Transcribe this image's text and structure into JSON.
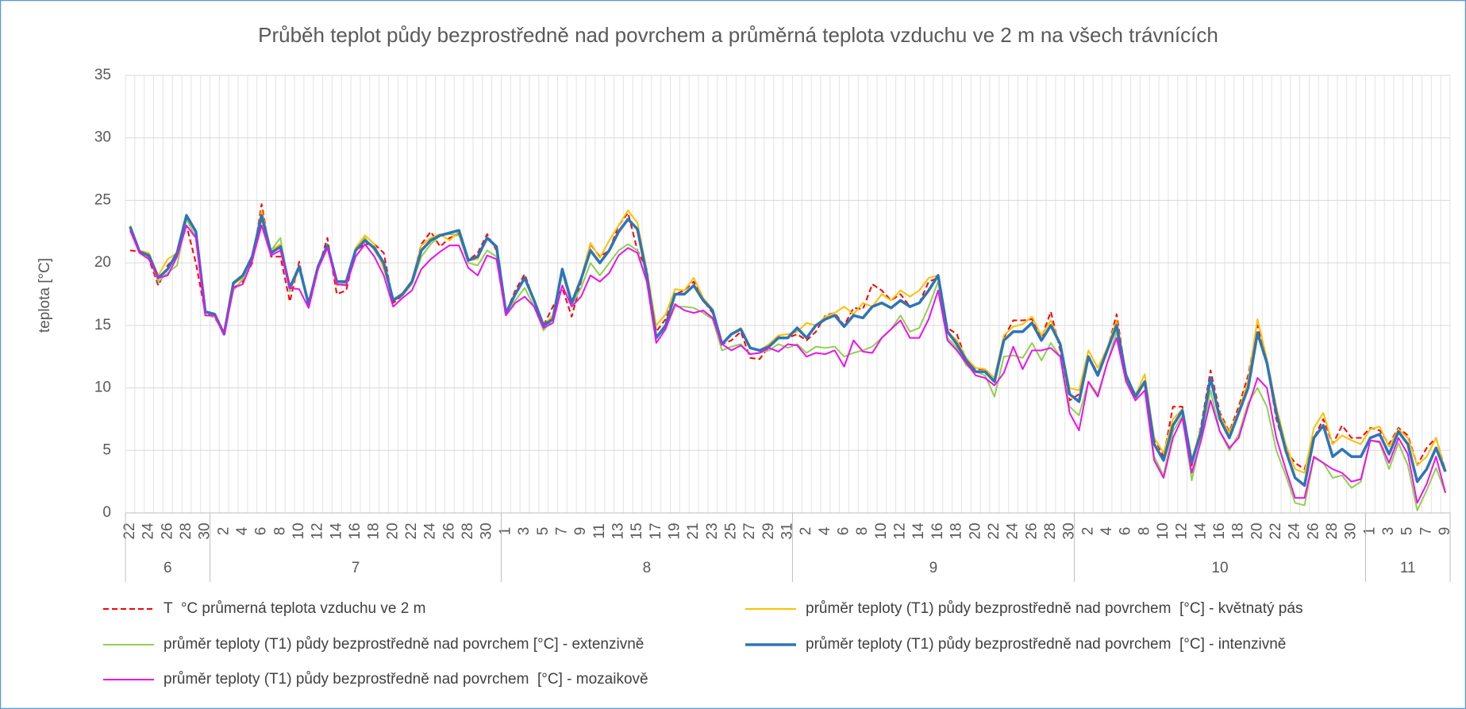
{
  "chart_data": {
    "type": "line",
    "title": "Průběh teplot půdy bezprostředně nad povrchem a průměrná teplota vzduchu ve 2 m na všech trávnících",
    "y_label": "teplota [°C]",
    "ylim": [
      0,
      35
    ],
    "yticks": [
      0,
      5,
      10,
      15,
      20,
      25,
      30,
      35
    ],
    "grid": true,
    "groups": [
      {
        "label": "6",
        "categories": [
          "22",
          null,
          "24",
          null,
          "26",
          null,
          "28",
          null,
          "30"
        ]
      },
      {
        "label": "7",
        "categories": [
          null,
          "2",
          null,
          "4",
          null,
          "6",
          null,
          "8",
          null,
          "10",
          null,
          "12",
          null,
          "14",
          null,
          "16",
          null,
          "18",
          null,
          "20",
          null,
          "22",
          null,
          "24",
          null,
          "26",
          null,
          "28",
          null,
          "30",
          null
        ]
      },
      {
        "label": "8",
        "categories": [
          "1",
          null,
          "3",
          null,
          "5",
          null,
          "7",
          null,
          "9",
          null,
          "11",
          null,
          "13",
          null,
          "15",
          null,
          "17",
          null,
          "19",
          null,
          "21",
          null,
          "23",
          null,
          "25",
          null,
          "27",
          null,
          "29",
          null,
          "31"
        ]
      },
      {
        "label": "9",
        "categories": [
          null,
          "2",
          null,
          "4",
          null,
          "6",
          null,
          "8",
          null,
          "10",
          null,
          "12",
          null,
          "14",
          null,
          "16",
          null,
          "18",
          null,
          "20",
          null,
          "22",
          null,
          "24",
          null,
          "26",
          null,
          "28",
          null,
          "30"
        ]
      },
      {
        "label": "10",
        "categories": [
          null,
          "2",
          null,
          "4",
          null,
          "6",
          null,
          "8",
          null,
          "10",
          null,
          "12",
          null,
          "14",
          null,
          "16",
          null,
          "18",
          null,
          "20",
          null,
          "22",
          null,
          "24",
          null,
          "26",
          null,
          "28",
          null,
          "30",
          null
        ]
      },
      {
        "label": "11",
        "categories": [
          "1",
          null,
          "3",
          null,
          "5",
          null,
          "7",
          null,
          "9"
        ]
      }
    ],
    "series": [
      {
        "name": "T  °C průmerná teplota vzduchu ve 2 m",
        "color": "#ff0000",
        "style": "dashed",
        "width": 2,
        "values": [
          21.0,
          20.9,
          20.3,
          18.2,
          19.8,
          20.6,
          23.0,
          20.0,
          16.0,
          15.6,
          14.5,
          18.0,
          18.5,
          20.0,
          24.7,
          20.5,
          20.5,
          16.9,
          20.1,
          16.4,
          19.5,
          22.0,
          17.5,
          17.8,
          21.0,
          21.5,
          21.5,
          20.8,
          16.8,
          17.4,
          18.5,
          21.5,
          22.5,
          21.3,
          22.0,
          22.3,
          20.2,
          20.8,
          22.3,
          21.0,
          16.0,
          17.8,
          19.1,
          17.0,
          15.0,
          16.5,
          18.0,
          15.7,
          18.5,
          21.5,
          20.5,
          21.0,
          23.0,
          24.0,
          21.0,
          19.5,
          14.5,
          15.5,
          17.5,
          17.8,
          18.5,
          17.0,
          16.0,
          13.5,
          13.8,
          14.5,
          12.4,
          12.3,
          13.3,
          14.1,
          14.0,
          14.3,
          13.8,
          14.5,
          15.8,
          16.0,
          15.0,
          16.4,
          16.3,
          18.3,
          17.8,
          17.0,
          17.5,
          16.5,
          16.8,
          18.5,
          18.8,
          14.8,
          14.3,
          12.2,
          11.5,
          11.5,
          10.8,
          14.0,
          15.4,
          15.4,
          15.5,
          14.0,
          16.1,
          13.0,
          9.0,
          9.5,
          12.5,
          11.2,
          13.0,
          15.9,
          11.0,
          9.5,
          10.5,
          6.0,
          4.5,
          8.5,
          8.5,
          3.8,
          7.0,
          11.4,
          8.0,
          6.5,
          8.5,
          11.0,
          15.0,
          12.0,
          7.5,
          5.0,
          4.0,
          3.5,
          6.0,
          7.5,
          5.5,
          7.0,
          6.0,
          6.0,
          6.8,
          6.6,
          5.5,
          6.8,
          6.2,
          3.8,
          5.2,
          6.0,
          3.4
        ]
      },
      {
        "name": "průměr teploty (T1) půdy bezprostředně nad povrchem  [°C] - květnatý pás",
        "color": "#ffc000",
        "style": "solid",
        "width": 2,
        "values": [
          23.0,
          21.0,
          20.8,
          19.0,
          20.3,
          20.8,
          23.5,
          22.6,
          16.0,
          15.9,
          14.4,
          18.3,
          18.8,
          20.5,
          24.2,
          21.0,
          21.5,
          17.8,
          19.5,
          16.7,
          19.7,
          21.5,
          18.2,
          18.4,
          21.2,
          22.2,
          21.5,
          19.5,
          17.1,
          17.6,
          18.6,
          21.4,
          22.0,
          22.3,
          21.8,
          22.5,
          20.2,
          20.3,
          22.0,
          21.2,
          16.0,
          17.6,
          18.7,
          17.0,
          15.0,
          15.8,
          19.4,
          16.8,
          18.8,
          21.6,
          20.4,
          21.8,
          23.0,
          24.2,
          23.2,
          19.4,
          15.0,
          15.9,
          17.9,
          17.8,
          18.8,
          17.2,
          16.3,
          13.6,
          14.3,
          14.8,
          13.2,
          13.0,
          13.5,
          14.2,
          14.3,
          14.5,
          15.2,
          15.0,
          15.7,
          16.0,
          16.5,
          15.9,
          16.8,
          16.5,
          17.5,
          17.0,
          17.8,
          17.3,
          17.8,
          18.8,
          19.0,
          14.5,
          13.8,
          12.4,
          11.6,
          11.5,
          10.8,
          14.2,
          14.9,
          15.1,
          15.7,
          14.2,
          15.4,
          13.5,
          10.0,
          9.8,
          13.0,
          11.6,
          13.2,
          15.4,
          11.2,
          9.4,
          11.1,
          6.0,
          4.8,
          7.5,
          8.3,
          4.3,
          6.8,
          10.8,
          7.8,
          6.4,
          8.2,
          10.6,
          15.5,
          12.3,
          8.5,
          5.5,
          3.5,
          3.2,
          6.8,
          8.0,
          5.5,
          6.2,
          5.8,
          5.5,
          6.7,
          6.9,
          5.3,
          6.7,
          6.0,
          3.8,
          4.5,
          6.0,
          3.3
        ]
      },
      {
        "name": "průměr teploty (T1) půdy bezprostředně nad povrchem [°C] - extenzivně",
        "color": "#92d050",
        "style": "solid",
        "width": 2,
        "values": [
          22.8,
          20.9,
          20.5,
          18.5,
          19.2,
          19.8,
          23.5,
          22.0,
          15.8,
          15.7,
          14.3,
          17.8,
          18.7,
          20.2,
          23.5,
          21.0,
          22.0,
          17.7,
          19.8,
          16.6,
          19.5,
          21.5,
          18.3,
          18.3,
          21.0,
          22.0,
          21.0,
          19.8,
          17.0,
          17.4,
          18.3,
          20.5,
          21.5,
          22.2,
          22.3,
          22.2,
          20.0,
          19.8,
          21.0,
          20.5,
          16.0,
          17.0,
          18.0,
          16.5,
          14.6,
          15.5,
          19.2,
          16.6,
          18.0,
          20.0,
          19.0,
          20.0,
          21.0,
          21.5,
          21.0,
          18.5,
          14.0,
          14.8,
          16.5,
          16.5,
          16.4,
          16.0,
          15.5,
          13.0,
          13.3,
          13.5,
          12.7,
          12.8,
          13.0,
          13.5,
          13.2,
          13.5,
          12.8,
          13.3,
          13.2,
          13.3,
          12.5,
          12.8,
          13.0,
          13.3,
          14.0,
          14.7,
          15.8,
          14.5,
          14.8,
          16.5,
          18.5,
          14.0,
          13.2,
          11.8,
          11.3,
          11.0,
          9.3,
          12.5,
          12.6,
          12.4,
          13.6,
          12.2,
          13.6,
          12.5,
          8.5,
          7.8,
          10.5,
          9.5,
          12.0,
          14.5,
          10.8,
          9.0,
          10.5,
          4.5,
          3.0,
          6.5,
          7.8,
          2.6,
          6.0,
          9.8,
          6.5,
          5.0,
          6.3,
          8.8,
          10.0,
          8.5,
          5.0,
          3.0,
          0.8,
          0.6,
          4.4,
          4.0,
          2.8,
          3.0,
          2.0,
          2.5,
          5.8,
          5.6,
          3.5,
          5.6,
          3.8,
          0.2,
          1.8,
          3.6,
          1.6
        ]
      },
      {
        "name": "průměr teploty (T1) půdy bezprostředně nad povrchem  [°C] - intenzivně",
        "color": "#2e75b6",
        "style": "solid",
        "width": 3.5,
        "values": [
          22.9,
          20.9,
          20.6,
          18.8,
          19.5,
          20.8,
          23.8,
          22.5,
          16.1,
          15.9,
          14.3,
          18.4,
          19.0,
          20.5,
          23.8,
          20.8,
          21.3,
          18.0,
          19.7,
          16.7,
          19.7,
          21.4,
          18.5,
          18.5,
          21.0,
          21.8,
          21.2,
          20.0,
          17.0,
          17.5,
          18.5,
          21.0,
          21.8,
          22.2,
          22.4,
          22.6,
          20.2,
          20.5,
          22.0,
          21.3,
          16.0,
          17.5,
          18.8,
          17.0,
          15.0,
          15.5,
          19.5,
          16.8,
          18.7,
          21.0,
          20.0,
          21.0,
          22.5,
          23.5,
          22.7,
          19.0,
          14.0,
          15.0,
          17.5,
          17.5,
          18.2,
          17.0,
          16.2,
          13.5,
          14.3,
          14.7,
          13.2,
          13.0,
          13.3,
          14.0,
          14.0,
          14.8,
          14.0,
          15.0,
          15.5,
          15.8,
          14.9,
          15.8,
          15.6,
          16.5,
          16.8,
          16.4,
          17.0,
          16.5,
          16.8,
          17.8,
          19.0,
          14.5,
          13.5,
          12.2,
          11.3,
          11.3,
          10.5,
          13.8,
          14.5,
          14.5,
          15.2,
          13.8,
          15.0,
          13.5,
          9.5,
          8.9,
          12.5,
          11.0,
          13.0,
          15.0,
          11.0,
          9.3,
          10.5,
          5.5,
          4.2,
          7.0,
          8.2,
          4.0,
          6.5,
          10.8,
          7.5,
          6.0,
          8.0,
          10.0,
          14.4,
          12.0,
          8.0,
          5.0,
          2.8,
          2.2,
          6.0,
          7.0,
          4.5,
          5.1,
          4.5,
          4.5,
          6.0,
          6.3,
          4.7,
          6.5,
          5.5,
          2.5,
          3.5,
          5.2,
          3.3
        ]
      },
      {
        "name": "průměr teploty (T1) půdy bezprostředně nad povrchem  [°C] - mozaikově",
        "color": "#ee10ee",
        "style": "solid",
        "width": 2,
        "values": [
          22.6,
          20.8,
          20.3,
          18.8,
          19.0,
          20.5,
          23.0,
          22.0,
          15.8,
          15.8,
          14.3,
          18.0,
          18.3,
          20.2,
          23.0,
          20.6,
          21.0,
          18.0,
          17.9,
          16.4,
          19.5,
          21.2,
          18.3,
          18.2,
          20.5,
          21.5,
          20.5,
          19.0,
          16.5,
          17.2,
          17.8,
          19.5,
          20.3,
          20.9,
          21.4,
          21.4,
          19.6,
          19.0,
          20.6,
          20.3,
          15.8,
          16.8,
          17.3,
          16.5,
          14.8,
          15.2,
          18.2,
          16.5,
          17.3,
          19.0,
          18.5,
          19.2,
          20.6,
          21.2,
          20.8,
          18.5,
          13.6,
          14.7,
          16.7,
          16.2,
          16.0,
          16.2,
          15.6,
          13.5,
          13.0,
          13.4,
          12.7,
          12.8,
          13.2,
          12.9,
          13.5,
          13.4,
          12.5,
          12.8,
          12.7,
          13.0,
          11.7,
          13.8,
          12.9,
          12.8,
          14.0,
          14.7,
          15.4,
          14.0,
          14.0,
          15.5,
          17.8,
          13.8,
          13.0,
          12.0,
          11.0,
          10.8,
          10.2,
          11.2,
          13.3,
          11.5,
          13.0,
          13.0,
          13.2,
          12.5,
          8.0,
          6.6,
          10.5,
          9.3,
          12.0,
          14.0,
          10.5,
          9.0,
          9.8,
          4.2,
          2.8,
          6.0,
          7.6,
          3.2,
          5.8,
          9.0,
          6.5,
          5.2,
          6.0,
          8.5,
          10.8,
          10.0,
          6.0,
          3.5,
          1.2,
          1.2,
          4.5,
          4.0,
          3.5,
          3.2,
          2.5,
          2.7,
          5.8,
          5.7,
          4.0,
          6.0,
          4.7,
          0.8,
          2.3,
          4.5,
          1.6
        ]
      }
    ]
  }
}
